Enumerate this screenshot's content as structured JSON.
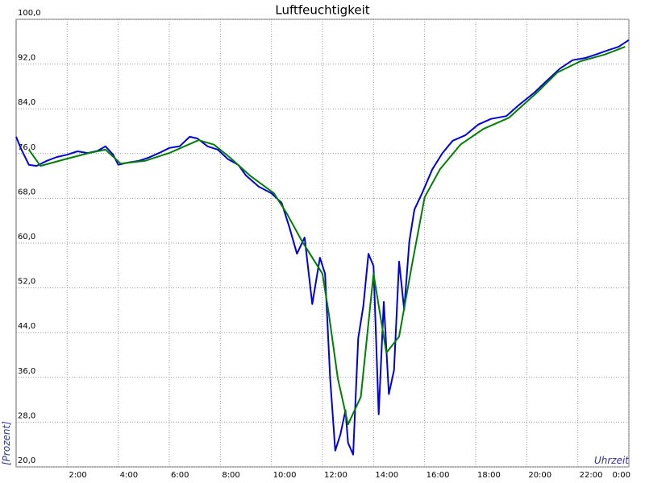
{
  "chart_data": {
    "type": "line",
    "title": "Luftfeuchtigkeit",
    "y_label": "[Prozent]",
    "x_label": "Uhrzeit",
    "xlim": [
      0,
      24
    ],
    "ylim": [
      20,
      100
    ],
    "grid": true,
    "xticks": [
      {
        "value": 2,
        "label": "2:00"
      },
      {
        "value": 4,
        "label": "4:00"
      },
      {
        "value": 6,
        "label": "6:00"
      },
      {
        "value": 8,
        "label": "8:00"
      },
      {
        "value": 10,
        "label": "10:00"
      },
      {
        "value": 12,
        "label": "12:00"
      },
      {
        "value": 14,
        "label": "14:00"
      },
      {
        "value": 16,
        "label": "16:00"
      },
      {
        "value": 18,
        "label": "18:00"
      },
      {
        "value": 20,
        "label": "20:00"
      },
      {
        "value": 22,
        "label": "22:00"
      },
      {
        "value": 24,
        "label": "0:00"
      }
    ],
    "yticks": [
      {
        "value": 20,
        "label": "20,0"
      },
      {
        "value": 28,
        "label": "28,0"
      },
      {
        "value": 36,
        "label": "36,0"
      },
      {
        "value": 44,
        "label": "44,0"
      },
      {
        "value": 52,
        "label": "52,0"
      },
      {
        "value": 60,
        "label": "60,0"
      },
      {
        "value": 68,
        "label": "68,0"
      },
      {
        "value": 76,
        "label": "76,0"
      },
      {
        "value": 84,
        "label": "84,0"
      },
      {
        "value": 92,
        "label": "92,0"
      },
      {
        "value": 100,
        "label": "100,0"
      }
    ],
    "series": [
      {
        "color": "#0000dd",
        "x": [
          0,
          0.2,
          0.5,
          0.8,
          1.2,
          1.6,
          2.0,
          2.4,
          2.8,
          3.2,
          3.5,
          3.8,
          4.0,
          4.4,
          4.8,
          5.2,
          5.6,
          6.0,
          6.4,
          6.8,
          7.1,
          7.5,
          7.9,
          8.3,
          8.7,
          9.0,
          9.5,
          10.0,
          10.4,
          10.7,
          11.0,
          11.3,
          11.6,
          11.9,
          12.1,
          12.3,
          12.5,
          12.7,
          12.9,
          13.0,
          13.2,
          13.4,
          13.6,
          13.8,
          14.0,
          14.2,
          14.4,
          14.6,
          14.8,
          15.0,
          15.2,
          15.4,
          15.6,
          15.9,
          16.3,
          16.7,
          17.1,
          17.6,
          18.1,
          18.6,
          19.2,
          19.7,
          20.3,
          20.8,
          21.3,
          21.8,
          22.3,
          22.7,
          23.2,
          23.6,
          24.0
        ],
        "values": [
          79.0,
          76.8,
          74.0,
          73.8,
          74.7,
          75.4,
          75.8,
          76.4,
          76.1,
          76.5,
          77.3,
          75.8,
          74.0,
          74.4,
          74.7,
          75.3,
          76.1,
          77.0,
          77.3,
          79.0,
          78.7,
          77.3,
          76.7,
          75.0,
          74.0,
          72.1,
          70.1,
          68.9,
          67.2,
          62.9,
          58.1,
          61.0,
          49.1,
          57.4,
          54.5,
          35.8,
          22.9,
          25.8,
          30.1,
          24.3,
          22.2,
          43.0,
          48.8,
          58.1,
          55.9,
          29.4,
          49.5,
          33.0,
          37.3,
          56.7,
          48.1,
          60.3,
          66.0,
          68.9,
          73.2,
          76.1,
          78.3,
          79.3,
          81.2,
          82.2,
          82.7,
          84.7,
          86.9,
          89.1,
          91.2,
          92.7,
          93.1,
          93.7,
          94.5,
          95.1,
          96.3
        ]
      },
      {
        "color": "#007f00",
        "x": [
          0.5,
          0.95,
          2,
          2.85,
          3.5,
          4.1,
          5.05,
          6,
          7.15,
          7.75,
          8.35,
          9.15,
          10.1,
          10.6,
          11.2,
          12,
          12.25,
          12.6,
          13,
          13.5,
          14,
          14.5,
          15,
          15.5,
          16,
          16.6,
          17.4,
          18.3,
          19.3,
          20.4,
          21.2,
          22.1,
          23.05,
          23.85
        ],
        "values": [
          76.7,
          73.8,
          75.1,
          76.1,
          76.7,
          74.2,
          74.7,
          76.1,
          78.4,
          77.6,
          75.4,
          72.1,
          68.9,
          65.3,
          60.3,
          54.5,
          47.3,
          35.8,
          27.6,
          32.5,
          54.5,
          40.4,
          43.3,
          56.0,
          68.2,
          73.2,
          77.6,
          80.4,
          82.4,
          86.9,
          90.5,
          92.5,
          93.7,
          95.1
        ]
      }
    ]
  }
}
